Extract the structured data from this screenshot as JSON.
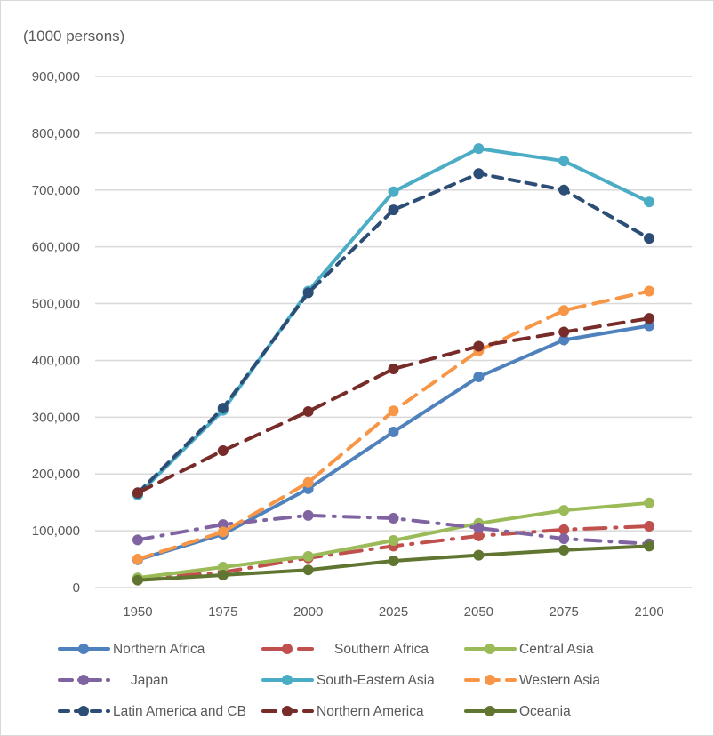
{
  "chart_data": {
    "type": "line",
    "title": "",
    "ylabel": "(1000 persons)",
    "xlabel": "",
    "ylim": [
      0,
      900000
    ],
    "yticks": [
      0,
      100000,
      200000,
      300000,
      400000,
      500000,
      600000,
      700000,
      800000,
      900000
    ],
    "ytick_labels": [
      "0",
      "100,000",
      "200,000",
      "300,000",
      "400,000",
      "500,000",
      "600,000",
      "700,000",
      "800,000",
      "900,000"
    ],
    "categories": [
      "1950",
      "1975",
      "2000",
      "2025",
      "2050",
      "2075",
      "2100"
    ],
    "grid": true,
    "legend_position": "bottom",
    "series": [
      {
        "name": "Northern Africa",
        "color": "#4f81bd",
        "dash": "solid",
        "values": [
          49000,
          94000,
          174000,
          274000,
          371000,
          436000,
          461000
        ]
      },
      {
        "name": "Southern Africa",
        "color": "#c0504d",
        "dash": "longdashdot",
        "values": [
          15000,
          27000,
          52000,
          73000,
          91000,
          102000,
          108000
        ]
      },
      {
        "name": "Central Asia",
        "color": "#9bbb59",
        "dash": "solid",
        "values": [
          17000,
          36000,
          55000,
          83000,
          113000,
          136000,
          149000
        ]
      },
      {
        "name": "Japan",
        "color": "#8064a2",
        "dash": "dashdot",
        "values": [
          84000,
          111000,
          127000,
          122000,
          105000,
          86000,
          77000
        ]
      },
      {
        "name": "South-Eastern Asia",
        "color": "#4bacc6",
        "dash": "solid",
        "values": [
          163000,
          312000,
          522000,
          697000,
          773000,
          751000,
          679000
        ]
      },
      {
        "name": "Western Asia",
        "color": "#f79646",
        "dash": "dash",
        "values": [
          50000,
          98000,
          185000,
          311000,
          417000,
          488000,
          522000
        ]
      },
      {
        "name": "Latin America and CB",
        "color": "#2c4d75",
        "dash": "shortdash",
        "values": [
          166000,
          316000,
          519000,
          665000,
          729000,
          700000,
          615000
        ]
      },
      {
        "name": "Northern America",
        "color": "#772c2a",
        "dash": "dash",
        "values": [
          167000,
          241000,
          310000,
          385000,
          425000,
          450000,
          474000
        ]
      },
      {
        "name": "Oceania",
        "color": "#5f7530",
        "dash": "solid",
        "values": [
          13000,
          22000,
          31000,
          47000,
          57000,
          66000,
          73000
        ]
      }
    ]
  }
}
